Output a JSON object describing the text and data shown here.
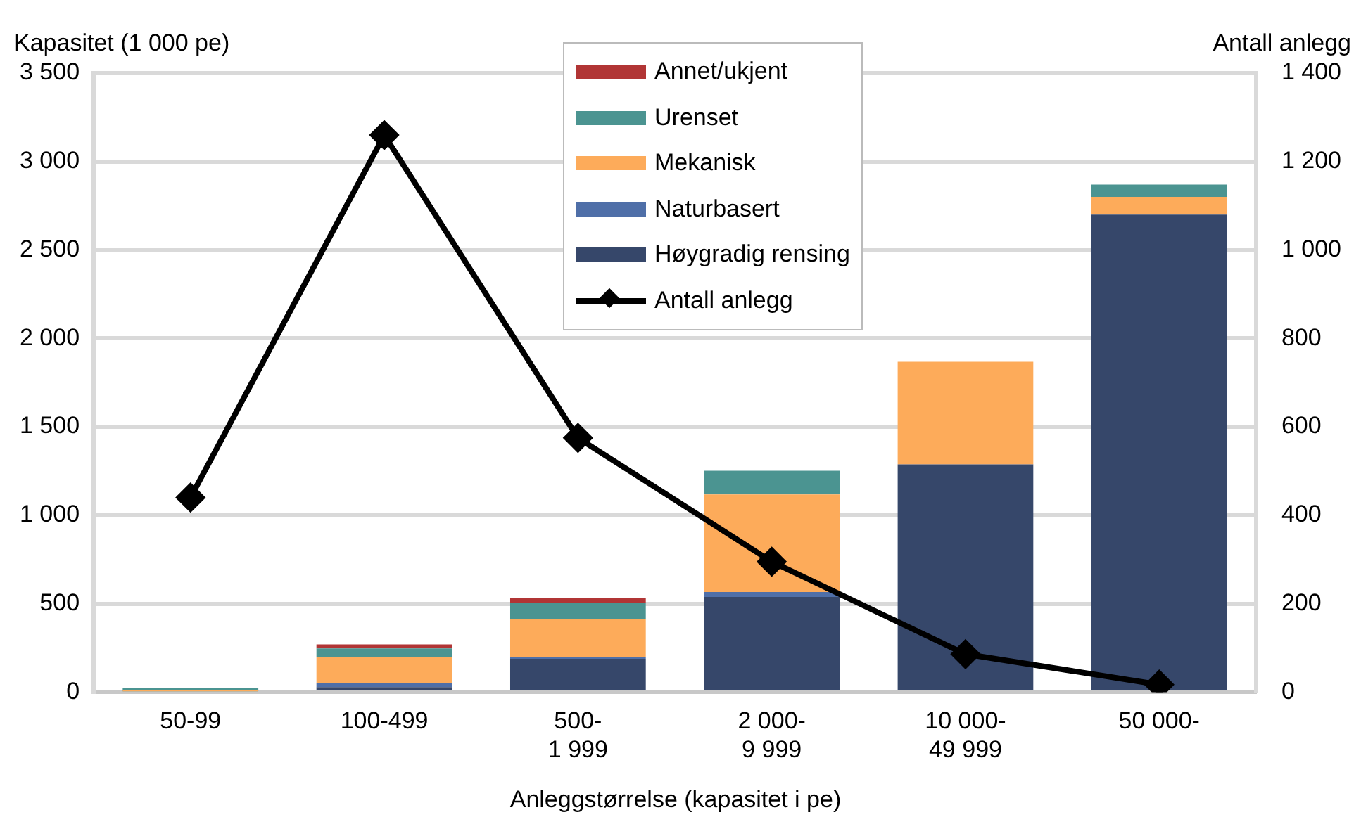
{
  "chart_data": {
    "type": "bar",
    "stacked": true,
    "xlabel": "Anleggstørrelse (kapasitet i pe)",
    "ylabel": "Kapasitet (1 000 pe)",
    "y2label": "Antall anlegg",
    "categories": [
      "50-99",
      "100-499",
      "500-\n1 999",
      "2 000-\n9 999",
      "10 000-\n49 999",
      "50 000-"
    ],
    "series": [
      {
        "name": "Høygradig rensing",
        "color": "#36476a",
        "values": [
          0,
          28,
          188,
          538,
          1288,
          2700
        ]
      },
      {
        "name": "Naturbasert",
        "color": "#4f6fa8",
        "values": [
          0,
          23,
          8,
          28,
          0,
          0
        ]
      },
      {
        "name": "Mekanisk",
        "color": "#fdab5a",
        "values": [
          5,
          149,
          219,
          552,
          580,
          100
        ]
      },
      {
        "name": "Urenset",
        "color": "#4b9491",
        "values": [
          20,
          47,
          90,
          134,
          0,
          70
        ]
      },
      {
        "name": "Annet/ukjent",
        "color": "#b13535",
        "values": [
          0,
          23,
          28,
          0,
          0,
          0
        ]
      },
      {
        "name": "Antall anlegg",
        "type": "line",
        "axis": "y2",
        "color": "#000000",
        "marker": "diamond",
        "values": [
          440,
          1260,
          575,
          295,
          86,
          17
        ]
      }
    ],
    "ylim": [
      0,
      3500
    ],
    "yticks": [
      0,
      {
        "value": 500,
        "label": "500"
      },
      {
        "value": 1000,
        "label": "1 000"
      },
      {
        "value": 1500,
        "label": "1 500"
      },
      {
        "value": 2000,
        "label": "2 000"
      },
      {
        "value": 2500,
        "label": "2 500"
      },
      {
        "value": 3000,
        "label": "3 000"
      },
      {
        "value": 3500,
        "label": "3 500"
      }
    ],
    "y2lim": [
      0,
      1400
    ],
    "y2ticks": [
      0,
      200,
      400,
      600,
      800,
      {
        "value": 1000,
        "label": "1 000"
      },
      {
        "value": 1200,
        "label": "1 200"
      },
      {
        "value": 1400,
        "label": "1 400"
      }
    ],
    "grid": "y",
    "legend": "top"
  }
}
